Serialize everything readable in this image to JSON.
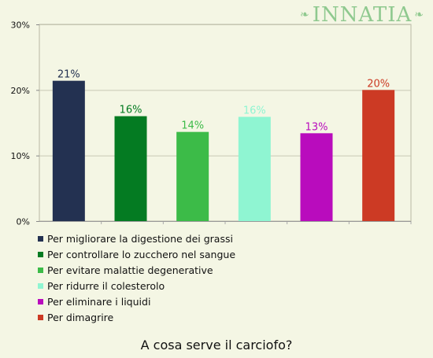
{
  "brand": {
    "name": "Innatia"
  },
  "caption": "A cosa serve il carciofo?",
  "chart_data": {
    "type": "bar",
    "categories": [
      "Per migliorare la digestione dei grassi",
      "Per controllare lo zucchero nel sangue",
      "Per evitare malattie degenerative",
      "Per ridurre il colesterolo",
      "Per eliminare i liquidi",
      "Per dimagrire"
    ],
    "values": [
      21.4,
      16.0,
      13.6,
      15.9,
      13.4,
      20.0
    ],
    "value_labels": [
      "21%",
      "16%",
      "14%",
      "16%",
      "13%",
      "20%"
    ],
    "colors": [
      "#233151",
      "#047b22",
      "#3cbb48",
      "#8ff5d2",
      "#b90cbd",
      "#cc3a24"
    ],
    "yticks": [
      0,
      10,
      20,
      30
    ],
    "ytick_labels": [
      "0%",
      "10%",
      "20%",
      "30%"
    ],
    "ylim": [
      0,
      30
    ],
    "grid": true,
    "legend_position": "bottom-left"
  }
}
